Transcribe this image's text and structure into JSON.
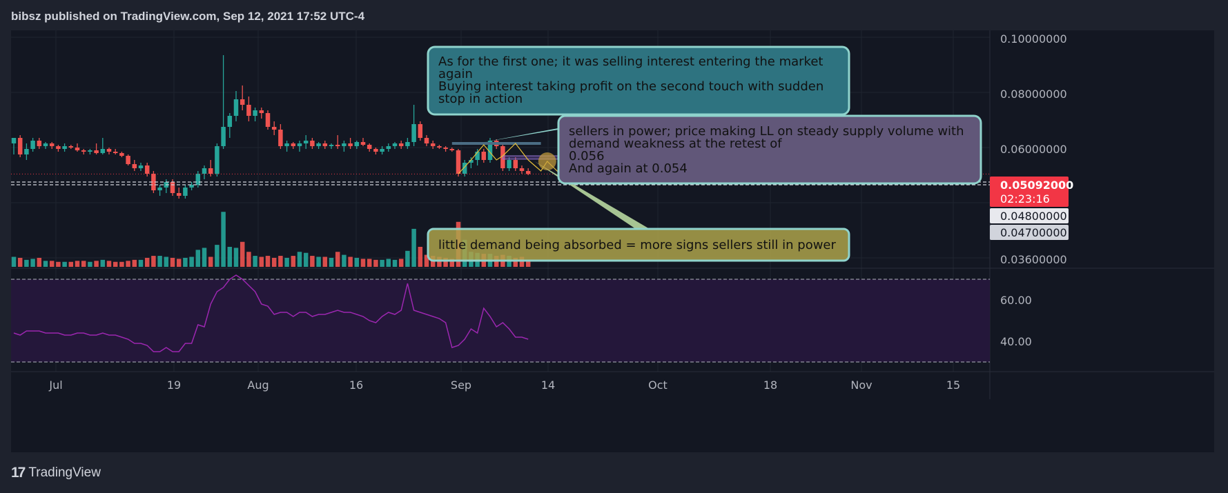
{
  "header": {
    "title": "bibsz published on TradingView.com, Sep 12, 2021 17:52 UTC-4"
  },
  "footer": {
    "brand": "TradingView",
    "logo_text": "17"
  },
  "colors": {
    "up": "#26a69a",
    "down": "#ef5350",
    "rsi": "#9c27b0",
    "rsi_band": "#24173a",
    "last_price_bg": "#f23645"
  },
  "price_axis": {
    "ticks": [
      "0.10000000",
      "0.08000000",
      "0.06000000",
      "0.03600000"
    ]
  },
  "rsi_axis": {
    "ticks": [
      "60.00",
      "40.00"
    ]
  },
  "time_axis": {
    "ticks": [
      "Jul",
      "19",
      "Aug",
      "16",
      "Sep",
      "14",
      "Oct",
      "18",
      "Nov",
      "15"
    ]
  },
  "price_labels": {
    "last_price": "0.05092000",
    "countdown": "02:23:16",
    "level1": "0.04800000",
    "level2": "0.04700000"
  },
  "annotations": [
    {
      "lines": [
        "As for the first one; it was selling interest entering the market",
        "again",
        "Buying interest taking profit on the second touch with sudden",
        "stop in action"
      ]
    },
    {
      "lines": [
        "sellers in power; price making LL on steady supply volume with",
        "demand weakness at the retest of",
        "0.056",
        "And again at 0.054"
      ]
    },
    {
      "lines": [
        "little demand being absorbed = more signs sellers still in power"
      ]
    }
  ],
  "chart_data": {
    "type": "candlestick",
    "title": "",
    "x_range": [
      "2021-06-26",
      "2021-11-20"
    ],
    "y_range": [
      0.036,
      0.1
    ],
    "candles": [
      {
        "o": 0.062,
        "h": 0.064,
        "l": 0.058,
        "c": 0.064,
        "v": 10
      },
      {
        "o": 0.064,
        "h": 0.065,
        "l": 0.057,
        "c": 0.058,
        "v": 9
      },
      {
        "o": 0.058,
        "h": 0.062,
        "l": 0.056,
        "c": 0.06,
        "v": 7
      },
      {
        "o": 0.06,
        "h": 0.064,
        "l": 0.059,
        "c": 0.063,
        "v": 8
      },
      {
        "o": 0.063,
        "h": 0.064,
        "l": 0.06,
        "c": 0.061,
        "v": 9
      },
      {
        "o": 0.061,
        "h": 0.0625,
        "l": 0.06,
        "c": 0.062,
        "v": 6
      },
      {
        "o": 0.062,
        "h": 0.0625,
        "l": 0.06,
        "c": 0.061,
        "v": 6
      },
      {
        "o": 0.061,
        "h": 0.0615,
        "l": 0.059,
        "c": 0.06,
        "v": 5
      },
      {
        "o": 0.06,
        "h": 0.062,
        "l": 0.059,
        "c": 0.061,
        "v": 5
      },
      {
        "o": 0.061,
        "h": 0.0615,
        "l": 0.06,
        "c": 0.0605,
        "v": 5
      },
      {
        "o": 0.0605,
        "h": 0.062,
        "l": 0.059,
        "c": 0.0595,
        "v": 6
      },
      {
        "o": 0.0595,
        "h": 0.06,
        "l": 0.058,
        "c": 0.059,
        "v": 6
      },
      {
        "o": 0.059,
        "h": 0.06,
        "l": 0.058,
        "c": 0.0595,
        "v": 5
      },
      {
        "o": 0.0595,
        "h": 0.062,
        "l": 0.058,
        "c": 0.0585,
        "v": 6
      },
      {
        "o": 0.0585,
        "h": 0.064,
        "l": 0.058,
        "c": 0.06,
        "v": 7
      },
      {
        "o": 0.06,
        "h": 0.0605,
        "l": 0.058,
        "c": 0.059,
        "v": 6
      },
      {
        "o": 0.059,
        "h": 0.06,
        "l": 0.058,
        "c": 0.0585,
        "v": 5
      },
      {
        "o": 0.0585,
        "h": 0.059,
        "l": 0.057,
        "c": 0.0575,
        "v": 5
      },
      {
        "o": 0.0575,
        "h": 0.058,
        "l": 0.054,
        "c": 0.0545,
        "v": 6
      },
      {
        "o": 0.0545,
        "h": 0.056,
        "l": 0.052,
        "c": 0.053,
        "v": 7
      },
      {
        "o": 0.053,
        "h": 0.055,
        "l": 0.052,
        "c": 0.054,
        "v": 7
      },
      {
        "o": 0.054,
        "h": 0.055,
        "l": 0.05,
        "c": 0.051,
        "v": 9
      },
      {
        "o": 0.051,
        "h": 0.052,
        "l": 0.044,
        "c": 0.045,
        "v": 11
      },
      {
        "o": 0.045,
        "h": 0.047,
        "l": 0.043,
        "c": 0.046,
        "v": 11
      },
      {
        "o": 0.046,
        "h": 0.049,
        "l": 0.044,
        "c": 0.048,
        "v": 10
      },
      {
        "o": 0.048,
        "h": 0.049,
        "l": 0.043,
        "c": 0.044,
        "v": 9
      },
      {
        "o": 0.044,
        "h": 0.046,
        "l": 0.042,
        "c": 0.043,
        "v": 8
      },
      {
        "o": 0.043,
        "h": 0.047,
        "l": 0.042,
        "c": 0.046,
        "v": 9
      },
      {
        "o": 0.046,
        "h": 0.048,
        "l": 0.045,
        "c": 0.047,
        "v": 10
      },
      {
        "o": 0.047,
        "h": 0.052,
        "l": 0.046,
        "c": 0.051,
        "v": 17
      },
      {
        "o": 0.051,
        "h": 0.054,
        "l": 0.049,
        "c": 0.053,
        "v": 19
      },
      {
        "o": 0.053,
        "h": 0.056,
        "l": 0.05,
        "c": 0.051,
        "v": 10
      },
      {
        "o": 0.051,
        "h": 0.062,
        "l": 0.05,
        "c": 0.061,
        "v": 22
      },
      {
        "o": 0.061,
        "h": 0.094,
        "l": 0.06,
        "c": 0.068,
        "v": 55
      },
      {
        "o": 0.068,
        "h": 0.073,
        "l": 0.064,
        "c": 0.072,
        "v": 20
      },
      {
        "o": 0.072,
        "h": 0.081,
        "l": 0.07,
        "c": 0.078,
        "v": 19
      },
      {
        "o": 0.078,
        "h": 0.083,
        "l": 0.074,
        "c": 0.076,
        "v": 25
      },
      {
        "o": 0.076,
        "h": 0.079,
        "l": 0.07,
        "c": 0.072,
        "v": 15
      },
      {
        "o": 0.072,
        "h": 0.075,
        "l": 0.07,
        "c": 0.074,
        "v": 11
      },
      {
        "o": 0.074,
        "h": 0.075,
        "l": 0.071,
        "c": 0.073,
        "v": 10
      },
      {
        "o": 0.073,
        "h": 0.074,
        "l": 0.067,
        "c": 0.068,
        "v": 11
      },
      {
        "o": 0.068,
        "h": 0.07,
        "l": 0.065,
        "c": 0.067,
        "v": 9
      },
      {
        "o": 0.067,
        "h": 0.069,
        "l": 0.06,
        "c": 0.061,
        "v": 11
      },
      {
        "o": 0.061,
        "h": 0.063,
        "l": 0.059,
        "c": 0.062,
        "v": 9
      },
      {
        "o": 0.062,
        "h": 0.0625,
        "l": 0.06,
        "c": 0.061,
        "v": 11
      },
      {
        "o": 0.061,
        "h": 0.063,
        "l": 0.059,
        "c": 0.062,
        "v": 15
      },
      {
        "o": 0.062,
        "h": 0.065,
        "l": 0.06,
        "c": 0.063,
        "v": 14
      },
      {
        "o": 0.063,
        "h": 0.064,
        "l": 0.06,
        "c": 0.061,
        "v": 11
      },
      {
        "o": 0.061,
        "h": 0.0625,
        "l": 0.06,
        "c": 0.062,
        "v": 10
      },
      {
        "o": 0.062,
        "h": 0.063,
        "l": 0.06,
        "c": 0.061,
        "v": 10
      },
      {
        "o": 0.061,
        "h": 0.062,
        "l": 0.06,
        "c": 0.0615,
        "v": 9
      },
      {
        "o": 0.0615,
        "h": 0.065,
        "l": 0.06,
        "c": 0.061,
        "v": 15
      },
      {
        "o": 0.061,
        "h": 0.063,
        "l": 0.059,
        "c": 0.062,
        "v": 12
      },
      {
        "o": 0.062,
        "h": 0.064,
        "l": 0.06,
        "c": 0.061,
        "v": 10
      },
      {
        "o": 0.061,
        "h": 0.063,
        "l": 0.06,
        "c": 0.0625,
        "v": 9
      },
      {
        "o": 0.0625,
        "h": 0.064,
        "l": 0.061,
        "c": 0.0615,
        "v": 8
      },
      {
        "o": 0.0615,
        "h": 0.062,
        "l": 0.059,
        "c": 0.06,
        "v": 8
      },
      {
        "o": 0.06,
        "h": 0.0605,
        "l": 0.058,
        "c": 0.059,
        "v": 7
      },
      {
        "o": 0.059,
        "h": 0.061,
        "l": 0.058,
        "c": 0.06,
        "v": 7
      },
      {
        "o": 0.06,
        "h": 0.062,
        "l": 0.059,
        "c": 0.061,
        "v": 8
      },
      {
        "o": 0.061,
        "h": 0.0625,
        "l": 0.06,
        "c": 0.062,
        "v": 7
      },
      {
        "o": 0.062,
        "h": 0.063,
        "l": 0.06,
        "c": 0.061,
        "v": 8
      },
      {
        "o": 0.061,
        "h": 0.064,
        "l": 0.06,
        "c": 0.0625,
        "v": 16
      },
      {
        "o": 0.0625,
        "h": 0.076,
        "l": 0.061,
        "c": 0.069,
        "v": 38
      },
      {
        "o": 0.069,
        "h": 0.07,
        "l": 0.063,
        "c": 0.064,
        "v": 20
      },
      {
        "o": 0.064,
        "h": 0.065,
        "l": 0.061,
        "c": 0.062,
        "v": 12
      },
      {
        "o": 0.062,
        "h": 0.063,
        "l": 0.06,
        "c": 0.061,
        "v": 11
      },
      {
        "o": 0.061,
        "h": 0.0615,
        "l": 0.06,
        "c": 0.0605,
        "v": 10
      },
      {
        "o": 0.0605,
        "h": 0.061,
        "l": 0.059,
        "c": 0.06,
        "v": 9
      },
      {
        "o": 0.06,
        "h": 0.0605,
        "l": 0.059,
        "c": 0.0595,
        "v": 8
      },
      {
        "o": 0.0595,
        "h": 0.06,
        "l": 0.05,
        "c": 0.051,
        "v": 45
      },
      {
        "o": 0.051,
        "h": 0.056,
        "l": 0.05,
        "c": 0.055,
        "v": 27
      },
      {
        "o": 0.055,
        "h": 0.057,
        "l": 0.053,
        "c": 0.056,
        "v": 15
      },
      {
        "o": 0.056,
        "h": 0.06,
        "l": 0.054,
        "c": 0.059,
        "v": 14
      },
      {
        "o": 0.059,
        "h": 0.06,
        "l": 0.055,
        "c": 0.056,
        "v": 13
      },
      {
        "o": 0.056,
        "h": 0.064,
        "l": 0.055,
        "c": 0.063,
        "v": 13
      },
      {
        "o": 0.063,
        "h": 0.0635,
        "l": 0.06,
        "c": 0.061,
        "v": 11
      },
      {
        "o": 0.061,
        "h": 0.062,
        "l": 0.052,
        "c": 0.053,
        "v": 12
      },
      {
        "o": 0.053,
        "h": 0.057,
        "l": 0.052,
        "c": 0.056,
        "v": 11
      },
      {
        "o": 0.056,
        "h": 0.057,
        "l": 0.052,
        "c": 0.053,
        "v": 9
      },
      {
        "o": 0.053,
        "h": 0.054,
        "l": 0.051,
        "c": 0.052,
        "v": 10
      },
      {
        "o": 0.052,
        "h": 0.053,
        "l": 0.0505,
        "c": 0.0509,
        "v": 6
      }
    ],
    "rsi": [
      44,
      43,
      45,
      45,
      45,
      44,
      44,
      44,
      43,
      43,
      44,
      44,
      43,
      43,
      44,
      43,
      43,
      42,
      41,
      39,
      39,
      38,
      35,
      35,
      37,
      35,
      35,
      39,
      39,
      48,
      47,
      58,
      64,
      66,
      70,
      72,
      70,
      67,
      64,
      58,
      57,
      53,
      54,
      54,
      52,
      54,
      54,
      52,
      53,
      53,
      54,
      55,
      54,
      54,
      53,
      52,
      50,
      49,
      52,
      54,
      53,
      55,
      68,
      55,
      54,
      53,
      52,
      51,
      49,
      37,
      38,
      41,
      46,
      44,
      56,
      52,
      47,
      49,
      46,
      42,
      42,
      41
    ],
    "rsi_levels": [
      70,
      30
    ],
    "horizontal_levels": [
      0.048,
      0.047
    ],
    "resistance_levels": [
      0.062,
      0.056
    ]
  }
}
